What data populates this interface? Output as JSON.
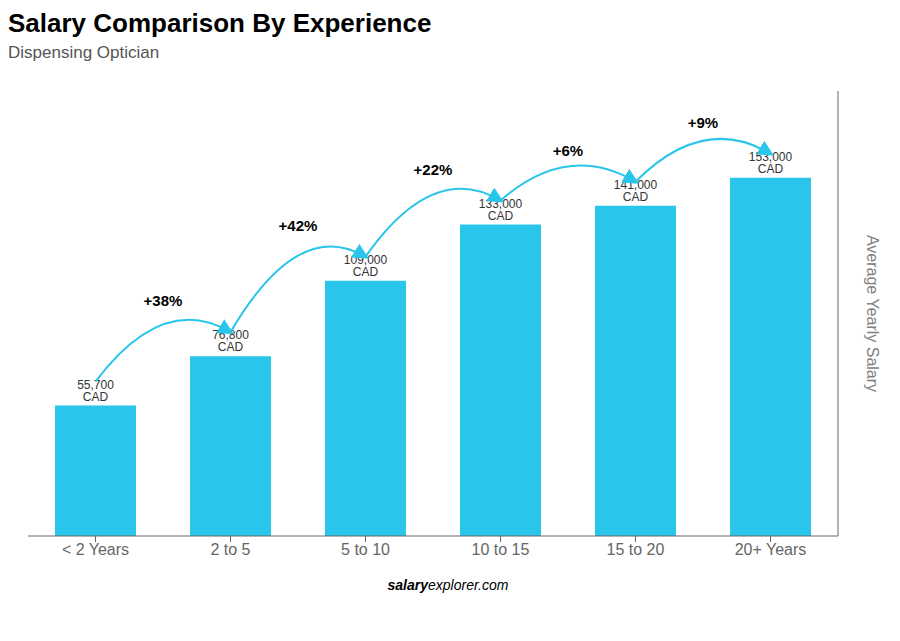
{
  "chart_data": {
    "type": "bar",
    "title": "Salary Comparison By Experience",
    "subtitle": "Dispensing Optician",
    "y_label": "Average Yearly Salary",
    "categories": [
      "< 2 Years",
      "2 to 5",
      "5 to 10",
      "10 to 15",
      "15 to 20",
      "20+ Years"
    ],
    "values": [
      55700,
      76800,
      109000,
      133000,
      141000,
      153000
    ],
    "value_labels": [
      "55,700 CAD",
      "76,800 CAD",
      "109,000 CAD",
      "133,000 CAD",
      "141,000 CAD",
      "153,000 CAD"
    ],
    "data_labels": true,
    "annotations": [
      null,
      "+38%",
      "+42%",
      "+22%",
      "+6%",
      "+9%"
    ],
    "footer": [
      "salary",
      "explorer.com"
    ],
    "color": "#29C5EA",
    "ylim": [
      0,
      190000
    ],
    "tick_labels": "x",
    "grid": false
  }
}
